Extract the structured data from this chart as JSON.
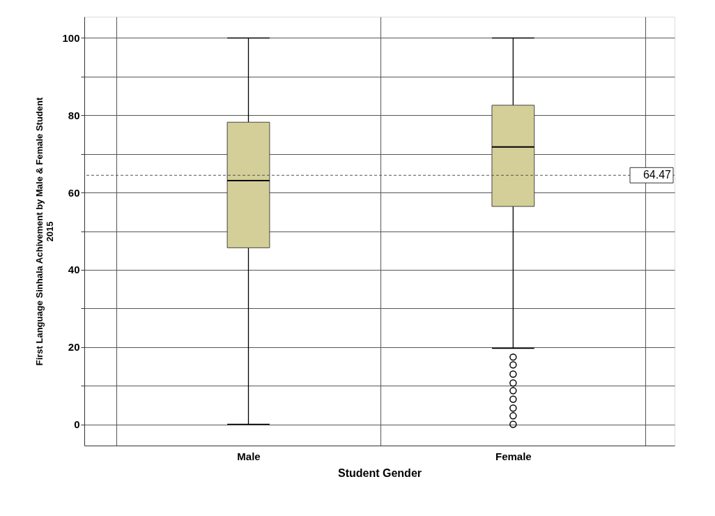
{
  "chart_data": {
    "type": "box",
    "xlabel": "Student Gender",
    "ylabel": "First Language Sinhala Achivement by Male & Female Student\n2015",
    "categories": [
      "Male",
      "Female"
    ],
    "boxes": [
      {
        "low": 0,
        "q1": 45.7,
        "median": 63.1,
        "q3": 78.2,
        "high": 100
      },
      {
        "low": 19.7,
        "q1": 56.4,
        "median": 71.8,
        "q3": 82.6,
        "high": 100,
        "outliers": [
          0,
          2.2,
          4.2,
          6.5,
          8.7,
          10.7,
          13,
          15.4,
          17.4
        ]
      }
    ],
    "color": "#d4cf98",
    "ylim": [
      -5.5,
      105.5
    ],
    "yticks": [
      0,
      {
        "value": 10,
        "label": null
      },
      20,
      {
        "value": 30,
        "label": null
      },
      40,
      {
        "value": 50,
        "label": null
      },
      60,
      {
        "value": 70,
        "label": null
      },
      80,
      {
        "value": 90,
        "label": null
      },
      100
    ],
    "ref_lines": [
      {
        "axis": "y",
        "value": 64.47,
        "label": "64.47",
        "line_style": "dashed",
        "color": "#555555"
      }
    ],
    "grid": true
  }
}
